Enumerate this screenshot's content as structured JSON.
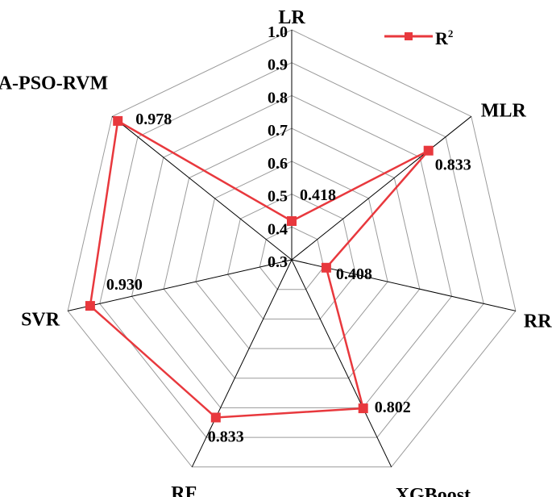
{
  "chart_data": {
    "type": "radar",
    "categories": [
      "LR",
      "MLR",
      "RR",
      "XGBoost",
      "RF",
      "SVR",
      "PCA-PSO-RVM"
    ],
    "series": [
      {
        "name": "R",
        "superscript": "2",
        "color": "#e8383d",
        "marker": "square",
        "values": [
          0.418,
          0.833,
          0.408,
          0.802,
          0.833,
          0.93,
          0.978
        ],
        "value_labels": [
          "0.418",
          "0.833",
          "0.408",
          "0.802",
          "0.833",
          "0.930",
          "0.978"
        ]
      }
    ],
    "rlim": [
      0.3,
      1.0
    ],
    "ticks": [
      0.3,
      0.4,
      0.5,
      0.6,
      0.7,
      0.8,
      0.9,
      1.0
    ],
    "tick_labels": [
      "0.3",
      "0.4",
      "0.5",
      "0.6",
      "0.7",
      "0.8",
      "0.9",
      "1.0"
    ],
    "grid": true,
    "legend_position": "top-right",
    "colors": {
      "series": "#e8383d",
      "grid": "#9a9a9a",
      "spokes": "#000000"
    }
  }
}
